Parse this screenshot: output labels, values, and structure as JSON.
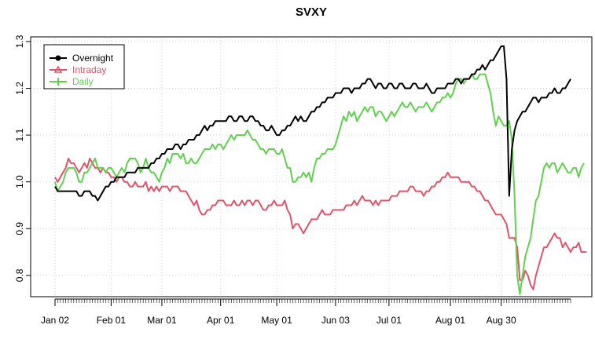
{
  "chart_data": {
    "type": "line",
    "title": "SVXY",
    "xlabel": "",
    "ylabel": "",
    "ylim": [
      0.75,
      1.3
    ],
    "yticks": [
      0.8,
      0.9,
      1.0,
      1.1,
      1.2,
      1.3
    ],
    "xtick_labels": [
      "Jan 02",
      "Feb 01",
      "Mar 01",
      "Apr 01",
      "May 01",
      "Jun 03",
      "Jul 01",
      "Aug 01",
      "Aug 30"
    ],
    "grid": true,
    "legend_position": "top-left",
    "series": [
      {
        "name": "Overnight",
        "color": "#000000",
        "marker": "circle",
        "values": [
          0.99,
          0.98,
          0.98,
          0.98,
          0.98,
          0.98,
          0.98,
          0.98,
          0.98,
          0.97,
          0.97,
          0.98,
          0.98,
          0.98,
          0.97,
          0.97,
          0.96,
          0.97,
          0.98,
          0.99,
          0.99,
          1.0,
          1.0,
          1.01,
          1.01,
          1.01,
          1.01,
          1.02,
          1.02,
          1.02,
          1.02,
          1.03,
          1.03,
          1.03,
          1.03,
          1.03,
          1.04,
          1.04,
          1.05,
          1.05,
          1.06,
          1.06,
          1.07,
          1.07,
          1.07,
          1.08,
          1.08,
          1.07,
          1.08,
          1.08,
          1.09,
          1.09,
          1.09,
          1.1,
          1.1,
          1.11,
          1.12,
          1.11,
          1.12,
          1.12,
          1.13,
          1.13,
          1.13,
          1.13,
          1.13,
          1.14,
          1.14,
          1.13,
          1.13,
          1.14,
          1.14,
          1.13,
          1.13,
          1.14,
          1.14,
          1.13,
          1.13,
          1.12,
          1.12,
          1.11,
          1.11,
          1.12,
          1.11,
          1.1,
          1.1,
          1.11,
          1.11,
          1.12,
          1.12,
          1.13,
          1.14,
          1.13,
          1.14,
          1.13,
          1.13,
          1.14,
          1.15,
          1.15,
          1.16,
          1.16,
          1.17,
          1.17,
          1.18,
          1.18,
          1.18,
          1.19,
          1.19,
          1.19,
          1.2,
          1.2,
          1.2,
          1.19,
          1.2,
          1.2,
          1.2,
          1.21,
          1.21,
          1.22,
          1.22,
          1.21,
          1.2,
          1.21,
          1.21,
          1.2,
          1.2,
          1.21,
          1.21,
          1.2,
          1.2,
          1.21,
          1.21,
          1.2,
          1.2,
          1.2,
          1.21,
          1.21,
          1.2,
          1.2,
          1.2,
          1.21,
          1.2,
          1.19,
          1.19,
          1.2,
          1.2,
          1.2,
          1.2,
          1.21,
          1.21,
          1.21,
          1.22,
          1.22,
          1.21,
          1.22,
          1.22,
          1.22,
          1.23,
          1.23,
          1.24,
          1.24,
          1.25,
          1.24,
          1.25,
          1.26,
          1.26,
          1.27,
          1.28,
          1.29,
          1.29,
          1.22,
          0.97,
          1.07,
          1.11,
          1.13,
          1.14,
          1.15,
          1.15,
          1.16,
          1.17,
          1.18,
          1.18,
          1.17,
          1.18,
          1.18,
          1.18,
          1.19,
          1.19,
          1.2,
          1.19,
          1.19,
          1.2,
          1.2,
          1.21,
          1.22
        ]
      },
      {
        "name": "Intraday",
        "color": "#DF536B",
        "marker": "triangle",
        "values": [
          1.01,
          1.0,
          1.01,
          1.02,
          1.03,
          1.05,
          1.04,
          1.04,
          1.03,
          1.02,
          1.03,
          1.04,
          1.03,
          1.05,
          1.04,
          1.03,
          1.03,
          1.02,
          1.03,
          1.02,
          1.02,
          1.01,
          1.01,
          1.0,
          1.01,
          1.01,
          1.0,
          1.0,
          0.99,
          0.99,
          1.0,
          0.99,
          0.99,
          0.99,
          1.0,
          0.98,
          0.99,
          0.98,
          0.99,
          0.98,
          0.99,
          0.99,
          0.99,
          0.98,
          0.99,
          0.99,
          0.99,
          0.98,
          0.98,
          0.98,
          0.97,
          0.96,
          0.95,
          0.96,
          0.94,
          0.93,
          0.93,
          0.94,
          0.94,
          0.95,
          0.95,
          0.96,
          0.96,
          0.96,
          0.95,
          0.95,
          0.95,
          0.96,
          0.95,
          0.95,
          0.96,
          0.95,
          0.96,
          0.96,
          0.95,
          0.96,
          0.96,
          0.95,
          0.94,
          0.94,
          0.95,
          0.95,
          0.96,
          0.95,
          0.95,
          0.95,
          0.96,
          0.94,
          0.93,
          0.9,
          0.91,
          0.91,
          0.9,
          0.89,
          0.9,
          0.91,
          0.92,
          0.92,
          0.92,
          0.93,
          0.94,
          0.93,
          0.93,
          0.93,
          0.94,
          0.94,
          0.94,
          0.94,
          0.94,
          0.95,
          0.95,
          0.95,
          0.96,
          0.95,
          0.96,
          0.97,
          0.96,
          0.96,
          0.96,
          0.95,
          0.96,
          0.95,
          0.96,
          0.96,
          0.96,
          0.96,
          0.97,
          0.97,
          0.97,
          0.98,
          0.98,
          0.98,
          0.98,
          0.99,
          0.99,
          0.98,
          0.98,
          0.98,
          0.97,
          0.98,
          0.98,
          0.99,
          0.99,
          1.0,
          1.0,
          1.01,
          1.01,
          1.02,
          1.01,
          1.01,
          1.01,
          1.01,
          1.0,
          1.0,
          1.0,
          1.0,
          0.99,
          0.99,
          0.98,
          0.98,
          0.97,
          0.96,
          0.96,
          0.95,
          0.94,
          0.93,
          0.93,
          0.93,
          0.92,
          0.91,
          0.88,
          0.88,
          0.88,
          0.86,
          0.79,
          0.79,
          0.81,
          0.8,
          0.78,
          0.77,
          0.8,
          0.82,
          0.84,
          0.86,
          0.86,
          0.87,
          0.88,
          0.89,
          0.88,
          0.88,
          0.86,
          0.87,
          0.86,
          0.85,
          0.86,
          0.86,
          0.87,
          0.85,
          0.85,
          0.85
        ]
      },
      {
        "name": "Daily",
        "color": "#61D04F",
        "marker": "plus",
        "values": [
          1.0,
          0.98,
          0.99,
          1.0,
          1.02,
          1.03,
          1.03,
          1.03,
          1.02,
          1.0,
          1.0,
          1.02,
          1.02,
          1.03,
          1.04,
          1.05,
          1.03,
          1.03,
          1.03,
          1.02,
          1.03,
          1.03,
          1.02,
          1.01,
          1.02,
          1.03,
          1.02,
          1.04,
          1.05,
          1.05,
          1.05,
          1.04,
          1.02,
          1.03,
          1.05,
          1.03,
          1.02,
          1.02,
          1.01,
          1.0,
          1.02,
          1.03,
          1.05,
          1.04,
          1.06,
          1.06,
          1.06,
          1.05,
          1.06,
          1.04,
          1.04,
          1.05,
          1.04,
          1.04,
          1.05,
          1.06,
          1.07,
          1.07,
          1.07,
          1.08,
          1.07,
          1.08,
          1.08,
          1.07,
          1.08,
          1.09,
          1.1,
          1.09,
          1.1,
          1.1,
          1.1,
          1.1,
          1.11,
          1.1,
          1.09,
          1.09,
          1.08,
          1.07,
          1.07,
          1.06,
          1.07,
          1.07,
          1.07,
          1.06,
          1.06,
          1.07,
          1.05,
          1.03,
          1.03,
          1.0,
          1.0,
          1.01,
          1.01,
          1.02,
          1.01,
          1.02,
          1.0,
          1.03,
          1.05,
          1.05,
          1.06,
          1.06,
          1.07,
          1.07,
          1.07,
          1.08,
          1.1,
          1.12,
          1.14,
          1.13,
          1.15,
          1.14,
          1.15,
          1.13,
          1.14,
          1.15,
          1.16,
          1.15,
          1.16,
          1.16,
          1.14,
          1.15,
          1.15,
          1.14,
          1.13,
          1.14,
          1.15,
          1.14,
          1.15,
          1.16,
          1.17,
          1.16,
          1.16,
          1.17,
          1.16,
          1.15,
          1.16,
          1.16,
          1.16,
          1.17,
          1.16,
          1.15,
          1.16,
          1.17,
          1.17,
          1.18,
          1.18,
          1.19,
          1.18,
          1.19,
          1.21,
          1.22,
          1.22,
          1.21,
          1.22,
          1.22,
          1.23,
          1.22,
          1.22,
          1.23,
          1.23,
          1.23,
          1.21,
          1.19,
          1.15,
          1.12,
          1.14,
          1.13,
          1.12,
          1.12,
          1.13,
          1.09,
          0.97,
          0.8,
          0.76,
          0.8,
          0.84,
          0.86,
          0.88,
          0.92,
          0.96,
          0.97,
          1.0,
          1.03,
          1.04,
          1.03,
          1.04,
          1.04,
          1.02,
          1.03,
          1.04,
          1.03,
          1.02,
          1.02,
          1.03,
          1.03,
          1.01,
          1.03,
          1.04
        ]
      }
    ]
  }
}
